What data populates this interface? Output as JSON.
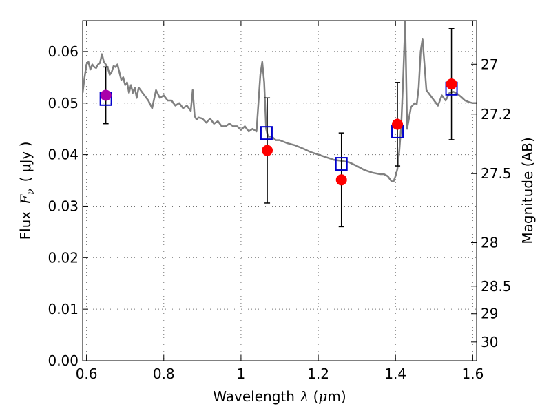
{
  "chart_data": {
    "type": "scatter",
    "xlabel_text": "Wavelength",
    "xlabel_symbol": "λ",
    "xlabel_unit_open": "(",
    "xlabel_unit_mu": "μ",
    "xlabel_unit_m": "m",
    "xlabel_unit_close": ")",
    "ylabel_text": "Flux",
    "ylabel_symbol": "F",
    "ylabel_subscript": "ν",
    "ylabel_unit": "( μJy )",
    "y2label": "Magnitude (AB)",
    "xlim": [
      0.59,
      1.61
    ],
    "ylim": [
      0.0,
      0.066
    ],
    "grid": true,
    "xticks": [
      0.6,
      0.8,
      1.0,
      1.2,
      1.4,
      1.6
    ],
    "xtick_labels": [
      "0.6",
      "0.8",
      "1",
      "1.2",
      "1.4",
      "1.6"
    ],
    "yticks": [
      0.0,
      0.01,
      0.02,
      0.03,
      0.04,
      0.05,
      0.06
    ],
    "ytick_labels": [
      "0.00",
      "0.01",
      "0.02",
      "0.03",
      "0.04",
      "0.05",
      "0.06"
    ],
    "mag_ticks": [
      {
        "value": 30,
        "label": "30"
      },
      {
        "value": 29,
        "label": "29"
      },
      {
        "value": 28.5,
        "label": "28.5"
      },
      {
        "value": 28,
        "label": "28"
      },
      {
        "value": 27.5,
        "label": "27.5"
      },
      {
        "value": 27.2,
        "label": "27.2"
      },
      {
        "value": 27,
        "label": "27"
      }
    ],
    "model_spectrum": {
      "color": "#808080",
      "x": [
        0.59,
        0.595,
        0.6,
        0.605,
        0.61,
        0.615,
        0.62,
        0.625,
        0.63,
        0.635,
        0.64,
        0.645,
        0.65,
        0.655,
        0.66,
        0.665,
        0.67,
        0.675,
        0.68,
        0.685,
        0.69,
        0.695,
        0.7,
        0.705,
        0.71,
        0.715,
        0.72,
        0.725,
        0.73,
        0.735,
        0.74,
        0.75,
        0.76,
        0.77,
        0.78,
        0.79,
        0.8,
        0.81,
        0.82,
        0.83,
        0.84,
        0.85,
        0.86,
        0.87,
        0.875,
        0.88,
        0.885,
        0.89,
        0.9,
        0.91,
        0.92,
        0.93,
        0.94,
        0.95,
        0.96,
        0.97,
        0.98,
        0.99,
        1.0,
        1.01,
        1.02,
        1.03,
        1.04,
        1.05,
        1.055,
        1.06,
        1.065,
        1.07,
        1.08,
        1.09,
        1.1,
        1.12,
        1.14,
        1.16,
        1.18,
        1.2,
        1.22,
        1.24,
        1.26,
        1.28,
        1.3,
        1.32,
        1.34,
        1.36,
        1.37,
        1.38,
        1.39,
        1.395,
        1.4,
        1.405,
        1.41,
        1.415,
        1.42,
        1.425,
        1.43,
        1.44,
        1.45,
        1.455,
        1.46,
        1.465,
        1.47,
        1.48,
        1.49,
        1.5,
        1.51,
        1.52,
        1.53,
        1.54,
        1.55,
        1.56,
        1.57,
        1.58,
        1.59,
        1.6,
        1.61
      ],
      "y": [
        0.052,
        0.055,
        0.0575,
        0.058,
        0.0565,
        0.0575,
        0.057,
        0.0568,
        0.0575,
        0.0578,
        0.0595,
        0.058,
        0.0575,
        0.0568,
        0.0555,
        0.056,
        0.0572,
        0.057,
        0.0575,
        0.056,
        0.0545,
        0.055,
        0.0535,
        0.054,
        0.052,
        0.0535,
        0.052,
        0.053,
        0.051,
        0.053,
        0.0525,
        0.0515,
        0.0505,
        0.049,
        0.0525,
        0.051,
        0.0515,
        0.0505,
        0.0505,
        0.0495,
        0.05,
        0.049,
        0.0495,
        0.0485,
        0.0525,
        0.0475,
        0.0468,
        0.0472,
        0.047,
        0.0462,
        0.047,
        0.046,
        0.0465,
        0.0455,
        0.0455,
        0.046,
        0.0455,
        0.0455,
        0.0448,
        0.0455,
        0.0445,
        0.045,
        0.0445,
        0.0555,
        0.058,
        0.054,
        0.045,
        0.0435,
        0.0435,
        0.0428,
        0.0428,
        0.0422,
        0.0418,
        0.0412,
        0.0405,
        0.04,
        0.0395,
        0.039,
        0.0388,
        0.0385,
        0.0378,
        0.037,
        0.0365,
        0.0362,
        0.0362,
        0.0358,
        0.0348,
        0.0348,
        0.0358,
        0.0372,
        0.0408,
        0.0458,
        0.0552,
        0.066,
        0.045,
        0.0492,
        0.05,
        0.0498,
        0.053,
        0.06,
        0.0625,
        0.0525,
        0.0515,
        0.0505,
        0.0495,
        0.0515,
        0.0505,
        0.052,
        0.0522,
        0.0518,
        0.0512,
        0.0505,
        0.0502,
        0.05,
        0.05
      ]
    },
    "series": [
      {
        "marker": "open-square",
        "color": "#0000cc",
        "x": [
          0.65,
          1.066,
          1.26,
          1.405,
          1.545
        ],
        "y": [
          0.0508,
          0.0442,
          0.0382,
          0.0445,
          0.0528
        ]
      },
      {
        "marker": "filled-circle",
        "color": "#ff0000",
        "x": [
          1.068,
          1.26,
          1.405,
          1.545
        ],
        "y": [
          0.0408,
          0.0351,
          0.0459,
          0.0537
        ],
        "yerr": [
          0.0102,
          0.0091,
          0.0081,
          0.0108
        ]
      },
      {
        "marker": "filled-circle",
        "color": "#aa00aa",
        "x": [
          0.65
        ],
        "y": [
          0.0515
        ],
        "yerr": [
          0.0055
        ]
      }
    ]
  }
}
